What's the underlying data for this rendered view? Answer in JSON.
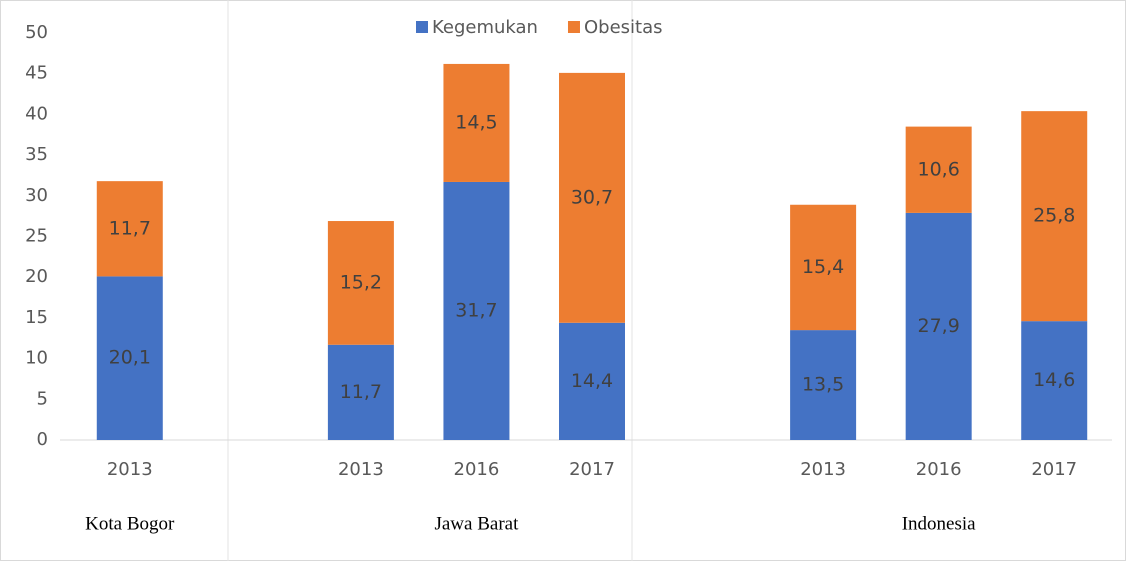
{
  "chart_data": {
    "type": "stacked_bar",
    "categories": [
      "2013",
      null,
      "2013",
      "2016",
      "2017",
      null,
      "2013",
      "2016",
      "2017"
    ],
    "groups": [
      "Kota Bogor",
      "Jawa Barat",
      "Indonesia"
    ],
    "series": [
      {
        "name": "Kegemukan",
        "color": "#4472c4",
        "values": [
          20.1,
          null,
          11.7,
          31.7,
          14.4,
          null,
          13.5,
          27.9,
          14.6
        ],
        "value_labels": [
          "20,1",
          null,
          "11,7",
          "31,7",
          "14,4",
          null,
          "13,5",
          "27,9",
          "14,6"
        ]
      },
      {
        "name": "Obesitas",
        "color": "#ed7d31",
        "values": [
          11.7,
          null,
          15.2,
          14.5,
          30.7,
          null,
          15.4,
          10.6,
          25.8
        ],
        "value_labels": [
          "11,7",
          null,
          "15,2",
          "14,5",
          "30,7",
          null,
          "15,4",
          "10,6",
          "25,8"
        ]
      }
    ],
    "ylim": [
      0,
      50
    ],
    "yticks": [
      0,
      5,
      10,
      15,
      20,
      25,
      30,
      35,
      40,
      45,
      50
    ],
    "legend": "top",
    "grid": false
  }
}
